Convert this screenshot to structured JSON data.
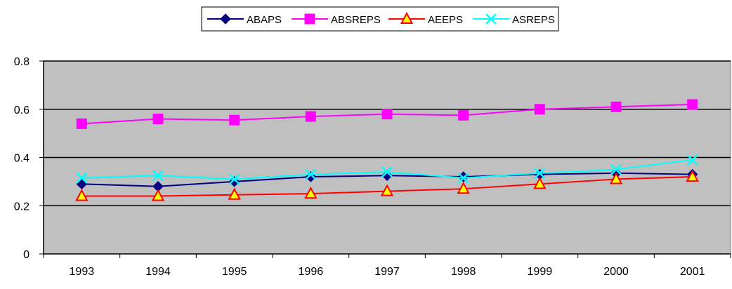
{
  "chart_data": {
    "type": "line",
    "title": "",
    "xlabel": "",
    "ylabel": "",
    "categories": [
      "1993",
      "1994",
      "1995",
      "1996",
      "1997",
      "1998",
      "1999",
      "2000",
      "2001"
    ],
    "ylim": [
      0,
      0.8
    ],
    "yticks": [
      "0",
      "0.2",
      "0.4",
      "0.6",
      "0.8"
    ],
    "grid": "horizontal major lines",
    "legend_position": "top-center",
    "plot_background": "#c0c0c0",
    "series": [
      {
        "name": "ABAPS",
        "color": "#000080",
        "marker": "diamond",
        "values": [
          0.29,
          0.28,
          0.3,
          0.32,
          0.325,
          0.32,
          0.33,
          0.335,
          0.33
        ]
      },
      {
        "name": "ABSREPS",
        "color": "#ff00ff",
        "marker": "square",
        "values": [
          0.54,
          0.56,
          0.555,
          0.57,
          0.58,
          0.575,
          0.6,
          0.61,
          0.62
        ]
      },
      {
        "name": "AEEPS",
        "color": "#ff0000",
        "marker": "triangle",
        "marker_fill": "#ffff00",
        "values": [
          0.24,
          0.24,
          0.245,
          0.25,
          0.26,
          0.27,
          0.29,
          0.31,
          0.32
        ]
      },
      {
        "name": "ASREPS",
        "color": "#00ffff",
        "marker": "x",
        "values": [
          0.315,
          0.325,
          0.31,
          0.33,
          0.34,
          0.315,
          0.335,
          0.35,
          0.39
        ]
      }
    ]
  }
}
